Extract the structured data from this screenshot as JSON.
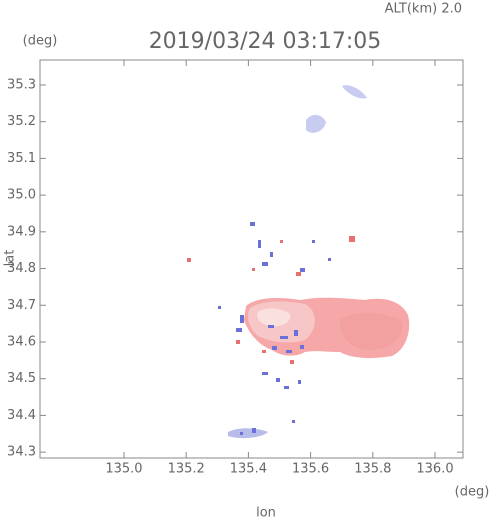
{
  "chart_data": {
    "type": "scatter",
    "title": "2019/03/24 03:17:05",
    "subtitle": "ALT(km) 2.0",
    "x_label": "lon",
    "y_label": "lat",
    "x_unit": "(deg)",
    "y_unit": "(deg)",
    "xlim": [
      134.73,
      136.09
    ],
    "ylim": [
      34.284,
      35.368
    ],
    "xticks": [
      {
        "value": 135.0,
        "label": "135.0"
      },
      {
        "value": 135.2,
        "label": "135.2"
      },
      {
        "value": 135.4,
        "label": "135.4"
      },
      {
        "value": 135.6,
        "label": "135.6"
      },
      {
        "value": 135.8,
        "label": "135.8"
      },
      {
        "value": 136.0,
        "label": "136.0"
      }
    ],
    "yticks": [
      {
        "value": 34.3,
        "label": "34.3"
      },
      34.4,
      34.5,
      34.6,
      34.7,
      34.8,
      34.9,
      {
        "value": 35.0,
        "label": "35.0"
      },
      35.1,
      35.2,
      35.3
    ]
  }
}
